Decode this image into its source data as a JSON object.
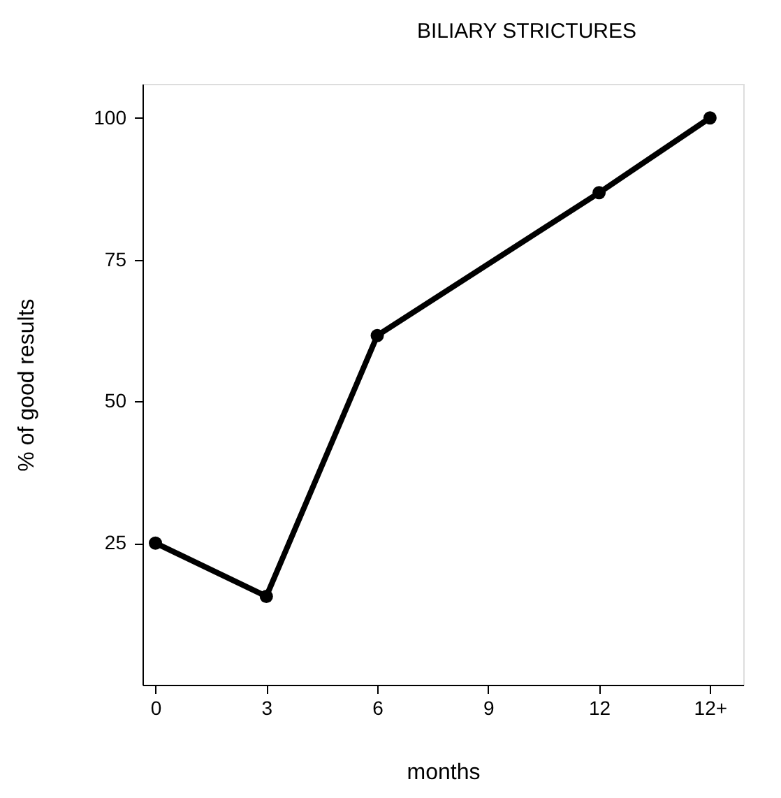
{
  "chart_data": {
    "type": "line",
    "title": "BILIARY STRICTURES",
    "xlabel": "months",
    "ylabel": "% of good results",
    "x": [
      0,
      3,
      6,
      12,
      15
    ],
    "series": [
      {
        "color": "#000000",
        "values": [
          25,
          15.6,
          61.6,
          86.8,
          100
        ]
      }
    ],
    "xlim": [
      -0.35,
      15.9
    ],
    "xticks": [
      0,
      3,
      6,
      9,
      12,
      {
        "value": 15,
        "label": "12+"
      }
    ],
    "ylim": [
      0,
      106
    ],
    "yticks": [
      25,
      50,
      75,
      100
    ],
    "grid": false,
    "legend": false,
    "marker": "circle",
    "line_style": "solid"
  }
}
